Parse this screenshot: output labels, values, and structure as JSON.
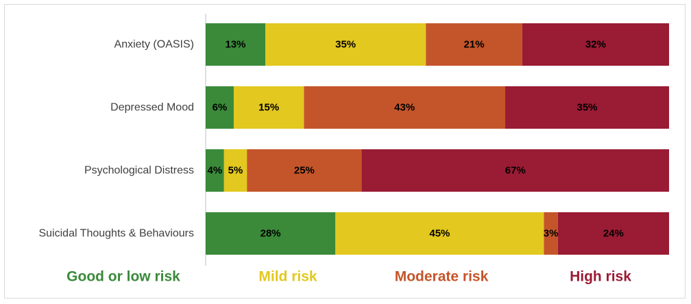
{
  "chart_data": {
    "type": "bar",
    "orientation": "horizontal",
    "stacked": true,
    "title": "",
    "xlabel": "",
    "ylabel": "",
    "categories": [
      "Anxiety (OASIS)",
      "Depressed Mood",
      "Psychological Distress",
      "Suicidal Thoughts & Behaviours"
    ],
    "series": [
      {
        "name": "Good or low risk",
        "color": "#3a8a3a",
        "values": [
          13,
          6,
          4,
          28
        ]
      },
      {
        "name": "Mild risk",
        "color": "#e3c81f",
        "values": [
          35,
          15,
          5,
          45
        ]
      },
      {
        "name": "Moderate risk",
        "color": "#c4552a",
        "values": [
          21,
          43,
          25,
          3
        ]
      },
      {
        "name": "High risk",
        "color": "#9a1b34",
        "values": [
          32,
          35,
          67,
          24
        ]
      }
    ],
    "data_labels": [
      [
        "13%",
        "6%",
        "4%",
        "28%"
      ],
      [
        "35%",
        "15%",
        "5%",
        "45%"
      ],
      [
        "21%",
        "43%",
        "25%",
        "3%"
      ],
      [
        "32%",
        "35%",
        "67%",
        "24%"
      ]
    ],
    "grid": false,
    "legend_position": "bottom"
  }
}
